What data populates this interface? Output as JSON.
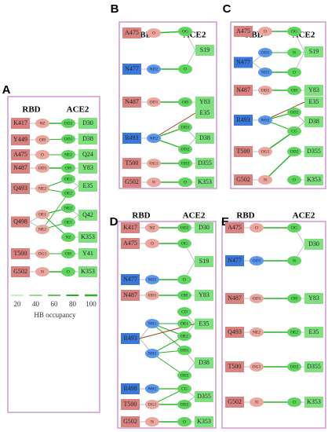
{
  "panels": [
    {
      "label": "A",
      "rbd_header": "RBD",
      "ace2_header": "ACE2",
      "rbd": [
        {
          "residue": "K417",
          "atoms": [
            "NZ"
          ]
        },
        {
          "residue": "Y449",
          "atoms": [
            "OH"
          ]
        },
        {
          "residue": "A475",
          "atoms": [
            "O"
          ]
        },
        {
          "residue": "N487",
          "atoms": [
            "OD1"
          ]
        },
        {
          "residue": "Q493",
          "atoms": [
            "NE2"
          ]
        },
        {
          "residue": "Q498",
          "atoms": [
            "OE1",
            "NE2"
          ]
        },
        {
          "residue": "T500",
          "atoms": [
            "OG1"
          ]
        },
        {
          "residue": "G502",
          "atoms": [
            "N"
          ]
        }
      ],
      "ace2": [
        {
          "residue": "D30",
          "atoms": [
            "OD2"
          ]
        },
        {
          "residue": "D38",
          "atoms": [
            "OD1"
          ]
        },
        {
          "residue": "Q24",
          "atoms": [
            "NE2"
          ]
        },
        {
          "residue": "Y83",
          "atoms": [
            "OH"
          ]
        },
        {
          "residue": "E35",
          "atoms": [
            "OE1",
            "OE2"
          ]
        },
        {
          "residue": "Q42",
          "atoms": [
            "NE2",
            "OE1"
          ]
        },
        {
          "residue": "K353",
          "atoms": [
            "NZ"
          ]
        },
        {
          "residue": "Y41",
          "atoms": [
            "OH"
          ]
        },
        {
          "residue": "K353",
          "atoms": [
            "O"
          ]
        }
      ]
    },
    {
      "label": "B",
      "rbd_header": "RBD",
      "ace2_header": "ACE2",
      "rbd": [
        {
          "residue": "A475",
          "atoms": [
            "O"
          ]
        },
        {
          "residue": "N477",
          "atoms": [
            "ND2"
          ]
        },
        {
          "residue": "N487",
          "atoms": [
            "OD1"
          ]
        },
        {
          "residue": "R493",
          "atoms": [
            "NH2"
          ]
        },
        {
          "residue": "T500",
          "atoms": [
            "OG1"
          ]
        },
        {
          "residue": "G502",
          "atoms": [
            "N"
          ]
        }
      ],
      "ace2": [
        {
          "residue": "S19",
          "atoms": [
            "OG",
            "O"
          ]
        },
        {
          "residue": "Y83",
          "atoms": [
            "OH"
          ]
        },
        {
          "residue": "E35",
          "atoms": []
        },
        {
          "residue": "D38",
          "atoms": [
            "OD1",
            "OD2"
          ]
        },
        {
          "residue": "D355",
          "atoms": [
            "OD2"
          ]
        },
        {
          "residue": "K353",
          "atoms": [
            "O"
          ]
        }
      ]
    },
    {
      "label": "C",
      "rbd_header": "RBD",
      "ace2_header": "ACE2",
      "rbd": [
        {
          "residue": "A475",
          "atoms": [
            "O"
          ]
        },
        {
          "residue": "N477",
          "atoms": [
            "OD1",
            "ND2"
          ]
        },
        {
          "residue": "N487",
          "atoms": [
            "OD1"
          ]
        },
        {
          "residue": "R493",
          "atoms": [
            "ND2"
          ]
        },
        {
          "residue": "T500",
          "atoms": [
            "OG1"
          ]
        },
        {
          "residue": "G502",
          "atoms": [
            "N"
          ]
        }
      ],
      "ace2": [
        {
          "residue": "S19",
          "atoms": [
            "OG",
            "N",
            "O"
          ]
        },
        {
          "residue": "Y83",
          "atoms": [
            "OH"
          ]
        },
        {
          "residue": "E35",
          "atoms": []
        },
        {
          "residue": "D38",
          "atoms": [
            "OD2",
            "CG"
          ]
        },
        {
          "residue": "D355",
          "atoms": [
            "OD2"
          ]
        },
        {
          "residue": "K353",
          "atoms": [
            "O"
          ]
        }
      ]
    },
    {
      "label": "D",
      "rbd_header": "RBD",
      "ace2_header": "ACE2",
      "rbd": [
        {
          "residue": "K417",
          "atoms": [
            "NZ"
          ]
        },
        {
          "residue": "A475",
          "atoms": [
            "O"
          ]
        },
        {
          "residue": "N477",
          "atoms": [
            "ND2"
          ]
        },
        {
          "residue": "N487",
          "atoms": [
            "OD1"
          ]
        },
        {
          "residue": "R493",
          "atoms": [
            "NH1",
            "NH2"
          ]
        },
        {
          "residue": "R498",
          "atoms": [
            "NH2"
          ]
        },
        {
          "residue": "T500",
          "atoms": [
            "OG1"
          ]
        },
        {
          "residue": "G502",
          "atoms": [
            "N"
          ]
        }
      ],
      "ace2": [
        {
          "residue": "D30",
          "atoms": [
            "OD2"
          ]
        },
        {
          "residue": "S19",
          "atoms": [
            "OG",
            "O"
          ]
        },
        {
          "residue": "Y83",
          "atoms": [
            "OH"
          ]
        },
        {
          "residue": "E35",
          "atoms": [
            "CD",
            "OE1",
            "OE2"
          ]
        },
        {
          "residue": "D38",
          "atoms": [
            "OD1",
            "OD2"
          ]
        },
        {
          "residue": "D355",
          "atoms": [
            "CG",
            "OD2"
          ]
        },
        {
          "residue": "K353",
          "atoms": [
            "O"
          ]
        }
      ]
    },
    {
      "label": "E",
      "rbd_header": "RBD",
      "ace2_header": "ACE2",
      "rbd": [
        {
          "residue": "A475",
          "atoms": [
            "O"
          ]
        },
        {
          "residue": "N477",
          "atoms": [
            "OD1"
          ]
        },
        {
          "residue": "N487",
          "atoms": [
            "OD1"
          ]
        },
        {
          "residue": "Q493",
          "atoms": [
            "NE2"
          ]
        },
        {
          "residue": "T500",
          "atoms": [
            "OG1"
          ]
        },
        {
          "residue": "G502",
          "atoms": [
            "N"
          ]
        }
      ],
      "ace2": [
        {
          "residue": "D30",
          "atoms": [
            "OG",
            "N"
          ]
        },
        {
          "residue": "Y83",
          "atoms": [
            "OH"
          ]
        },
        {
          "residue": "E35",
          "atoms": [
            "OE2"
          ]
        },
        {
          "residue": "D355",
          "atoms": [
            "OD2"
          ]
        },
        {
          "residue": "K353",
          "atoms": [
            "O"
          ]
        }
      ]
    }
  ],
  "legend": {
    "ticks": [
      20,
      40,
      60,
      80,
      100
    ],
    "title": "HB occupancy"
  }
}
